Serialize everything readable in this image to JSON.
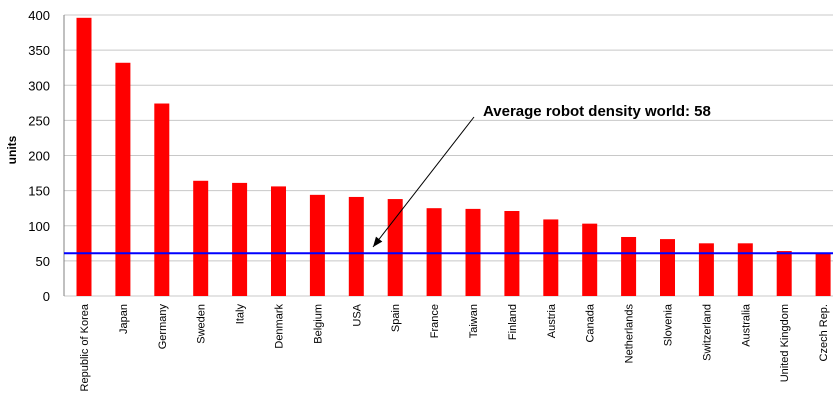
{
  "chart_data": {
    "type": "bar",
    "title": "",
    "xlabel": "",
    "ylabel": "units",
    "ylim": [
      0,
      400
    ],
    "yticks": [
      0,
      50,
      100,
      150,
      200,
      250,
      300,
      350,
      400
    ],
    "grid": true,
    "categories": [
      "Republic of Korea",
      "Japan",
      "Germany",
      "Sweden",
      "Italy",
      "Denmark",
      "Belgium",
      "USA",
      "Spain",
      "France",
      "Taiwan",
      "Finland",
      "Austria",
      "Canada",
      "Netherlands",
      "Slovenia",
      "Switzerland",
      "Australia",
      "United Kingdom",
      "Czech Rep."
    ],
    "values": [
      396,
      332,
      274,
      164,
      161,
      156,
      144,
      141,
      138,
      125,
      124,
      121,
      109,
      103,
      84,
      81,
      75,
      75,
      64,
      60
    ],
    "bar_color": "#ff0000",
    "reference_line": {
      "value": 58,
      "color": "#0000ff",
      "annotation": "Average robot density world: 58"
    }
  }
}
